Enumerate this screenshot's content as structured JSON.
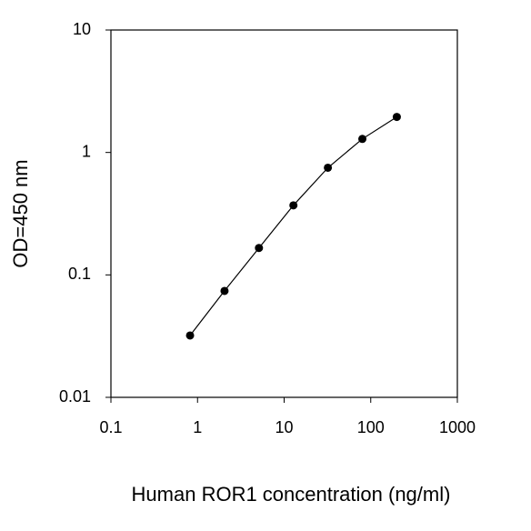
{
  "chart_data": {
    "type": "line",
    "xlabel": "Human ROR1 concentration (ng/ml)",
    "ylabel": "OD=450 nm",
    "x": [
      0.82,
      2.05,
      5.12,
      12.8,
      32,
      80,
      200
    ],
    "series": [
      {
        "color": "#000000",
        "values": [
          0.032,
          0.074,
          0.166,
          0.37,
          0.75,
          1.29,
          1.95
        ]
      }
    ],
    "xlim": [
      0.1,
      1000
    ],
    "ylim": [
      0.01,
      10
    ],
    "xticks": [
      0.1,
      1,
      10,
      100,
      1000
    ],
    "yticks": [
      0.01,
      0.1,
      1,
      10
    ],
    "xscale": "log",
    "yscale": "log",
    "grid": false
  }
}
